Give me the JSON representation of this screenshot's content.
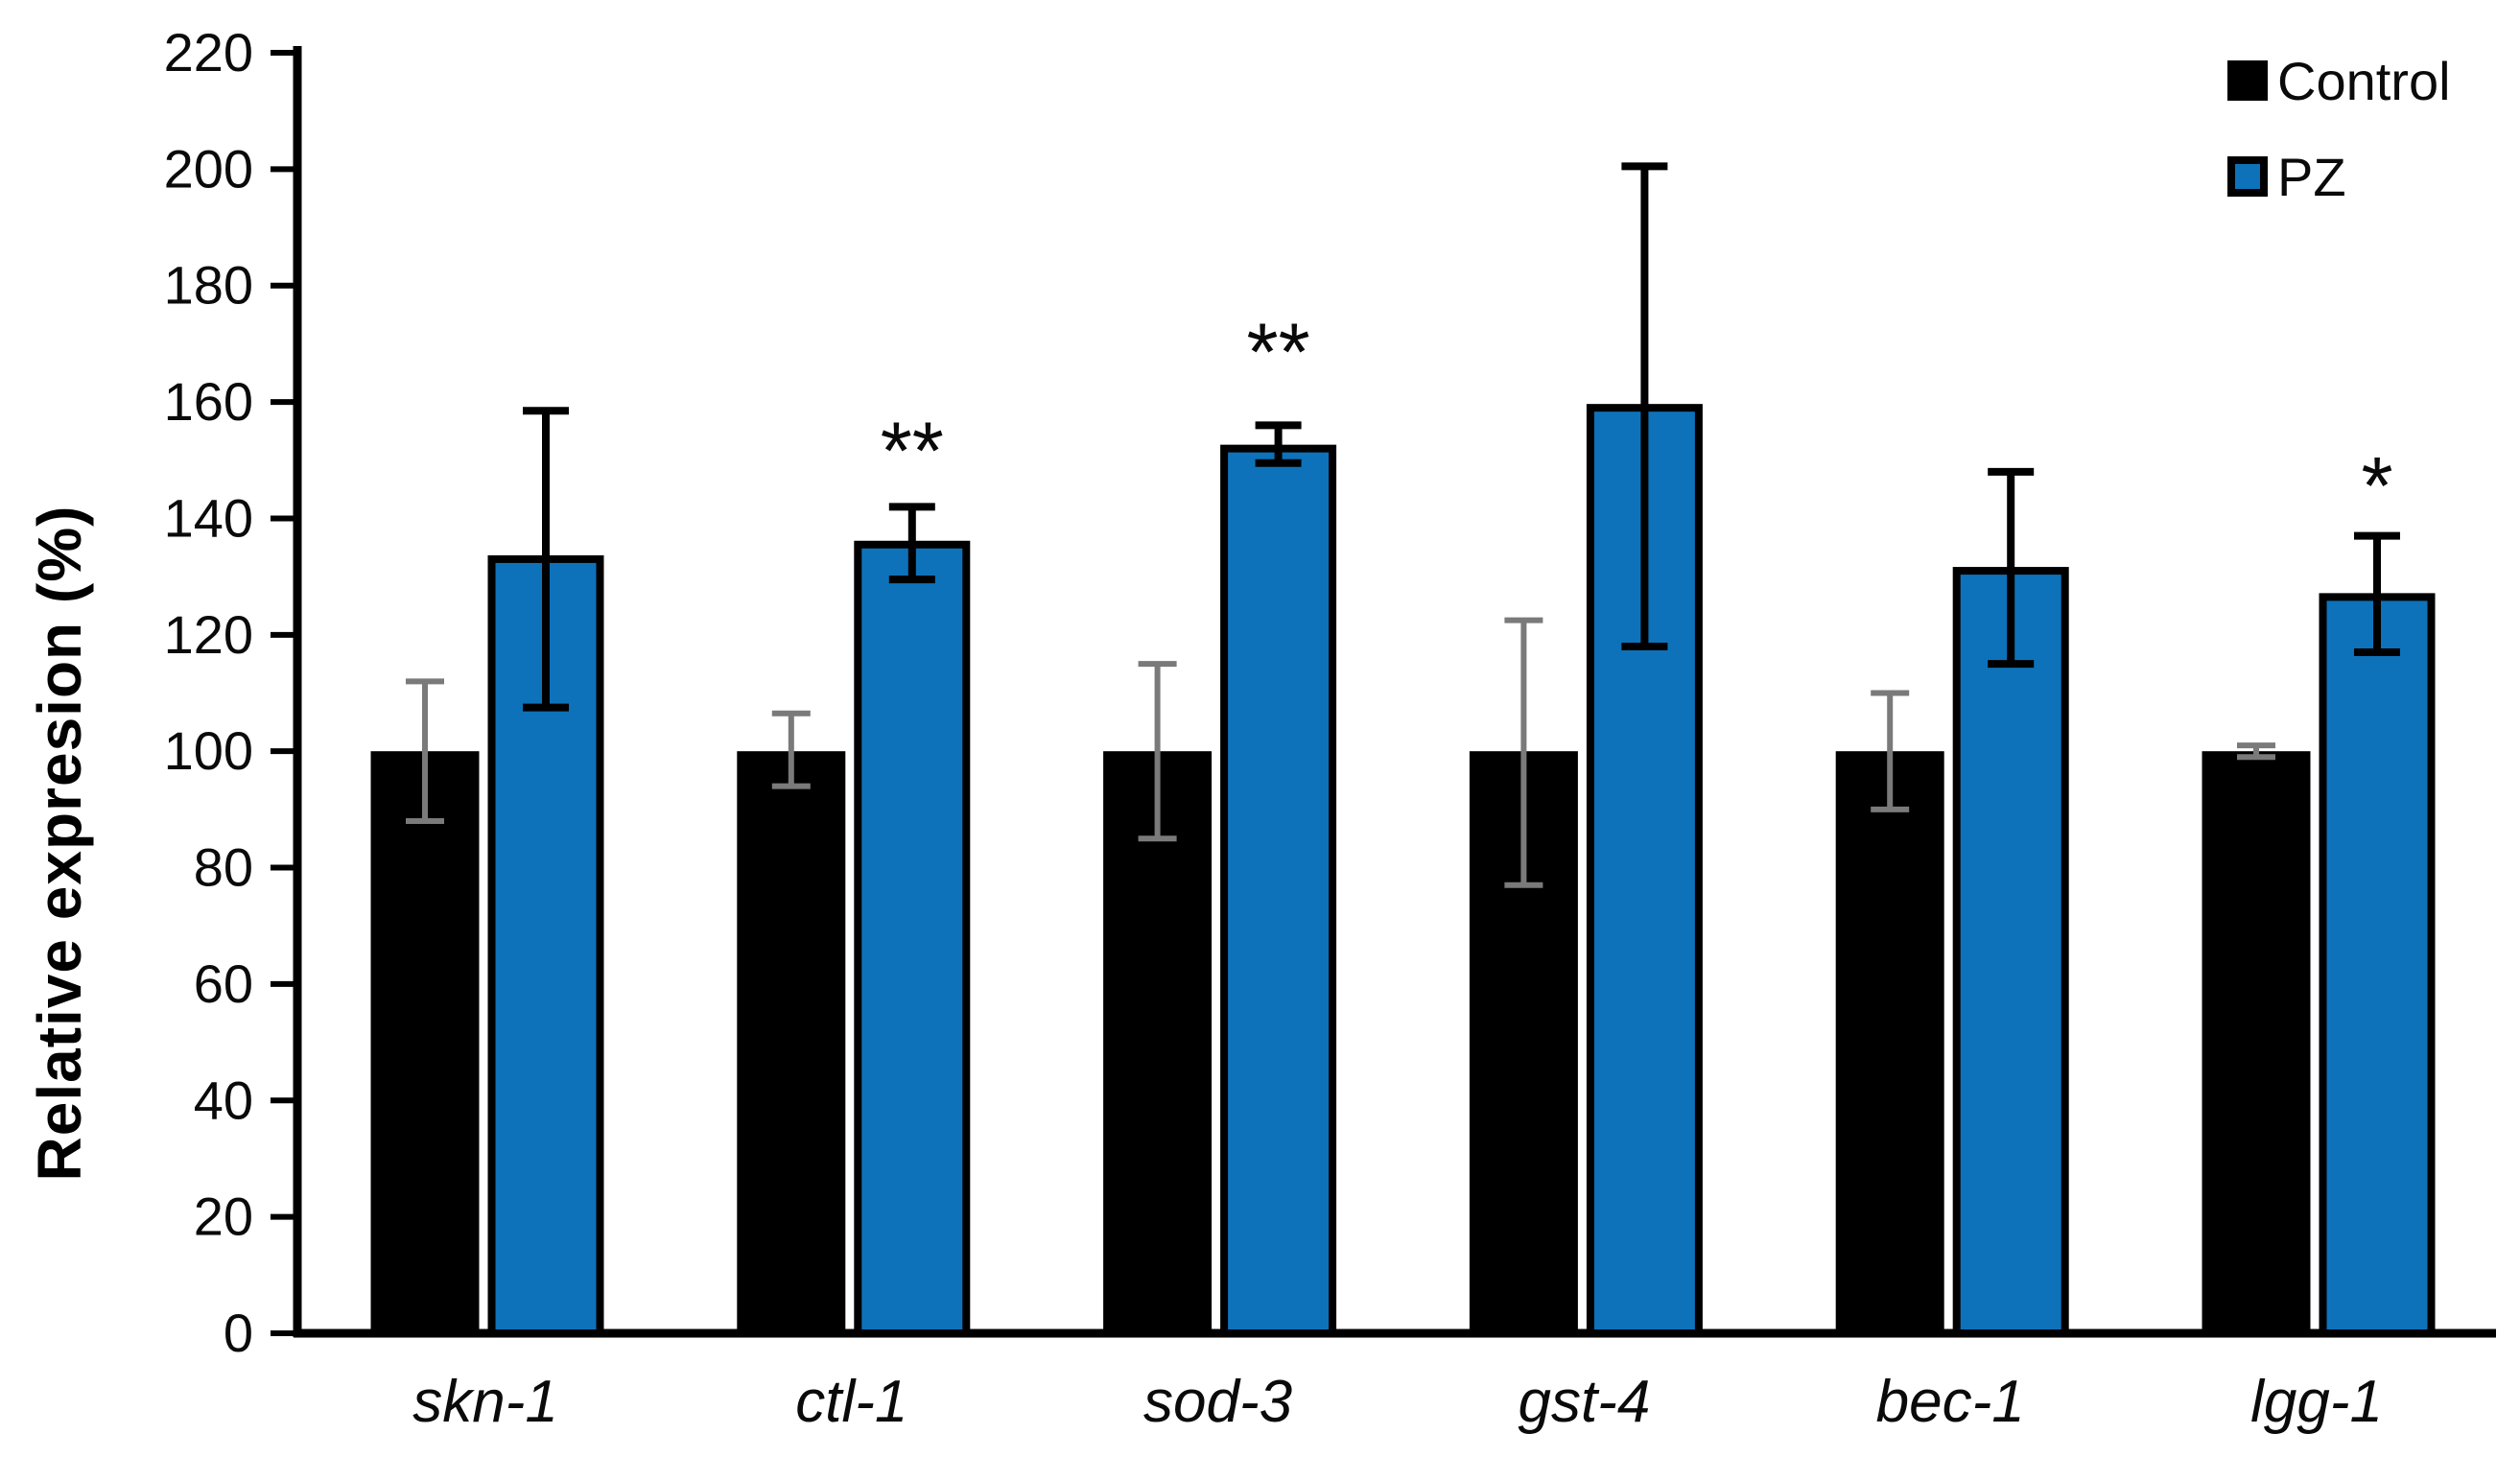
{
  "figure": {
    "background": "#ffffff"
  },
  "legend": {
    "position": "top-right",
    "items": [
      {
        "label": "Control",
        "swatch_color": "#000000"
      },
      {
        "label": "PZ",
        "swatch_color": "#0d72ba",
        "swatch_border_color": "#000000"
      }
    ]
  },
  "chart_data": {
    "type": "bar",
    "title": "",
    "xlabel": "",
    "ylabel": "Relative expresion (%)",
    "ylim": [
      0,
      220
    ],
    "yticks": [
      0,
      20,
      40,
      60,
      80,
      100,
      120,
      140,
      160,
      180,
      200,
      220
    ],
    "grid": false,
    "legend_position": "top-right",
    "categories": [
      "skn-1",
      "ctl-1",
      "sod-3",
      "gst-4",
      "bec-1",
      "lgg-1"
    ],
    "categories_style": "italic",
    "axis_color": "#000000",
    "series": [
      {
        "name": "Control",
        "color": "#000000",
        "error_color": "#7a7a7a",
        "values": [
          100,
          100,
          100,
          100,
          100,
          100
        ],
        "error_upper": [
          112,
          106.5,
          115,
          122.5,
          110,
          101
        ],
        "error_lower": [
          88,
          94,
          85,
          77,
          90,
          99
        ]
      },
      {
        "name": "PZ",
        "color": "#0d72ba",
        "border_color": "#000000",
        "error_color": "#000000",
        "values": [
          133,
          135.5,
          152,
          159,
          131,
          126.5
        ],
        "error_upper": [
          158.5,
          142,
          156,
          200.5,
          148,
          137
        ],
        "error_lower": [
          107.5,
          129.5,
          149.5,
          118,
          115,
          117
        ]
      }
    ],
    "significance_markers": [
      {
        "category": "ctl-1",
        "series": "PZ",
        "label": "**",
        "y": 154
      },
      {
        "category": "sod-3",
        "series": "PZ",
        "label": "**",
        "y": 171
      },
      {
        "category": "lgg-1",
        "series": "PZ",
        "label": "*",
        "y": 148
      }
    ]
  }
}
